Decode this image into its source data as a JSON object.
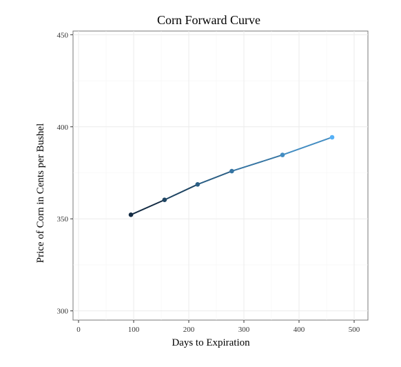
{
  "chart_data": {
    "type": "line",
    "title": "Corn Forward Curve",
    "xlabel": "Days to Expiration",
    "ylabel": "Price of Corn in Cents per Bushel",
    "xlim": [
      -10,
      525
    ],
    "ylim": [
      295,
      452
    ],
    "x_ticks": [
      0,
      100,
      200,
      300,
      400,
      500
    ],
    "y_ticks": [
      300,
      350,
      400,
      450
    ],
    "grid": true,
    "legend": "none",
    "series": [
      {
        "x": [
          95,
          156,
          216,
          278,
          370,
          460
        ],
        "values": [
          352.2,
          360.3,
          368.7,
          375.9,
          384.7,
          394.3
        ],
        "colors": [
          "#132B43",
          "#1F4563",
          "#2B5F85",
          "#3675A3",
          "#438DC2",
          "#56B1F7"
        ]
      }
    ]
  }
}
